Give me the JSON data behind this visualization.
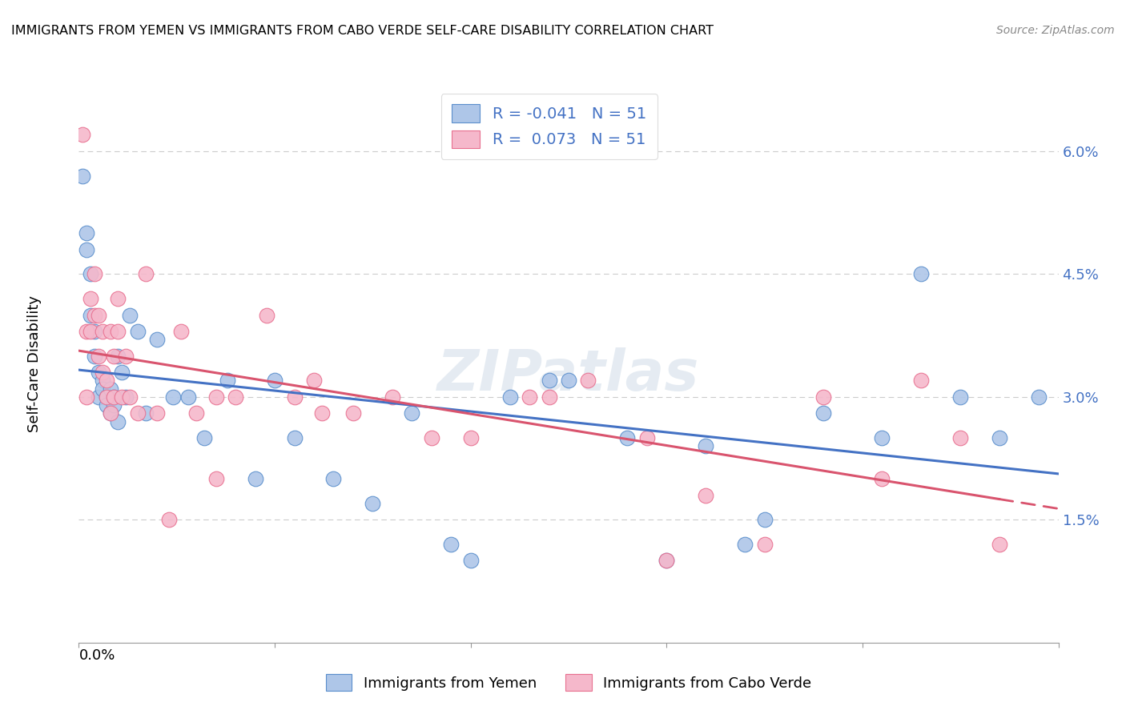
{
  "title": "IMMIGRANTS FROM YEMEN VS IMMIGRANTS FROM CABO VERDE SELF-CARE DISABILITY CORRELATION CHART",
  "source": "Source: ZipAtlas.com",
  "ylabel": "Self-Care Disability",
  "yticks": [
    "1.5%",
    "3.0%",
    "4.5%",
    "6.0%"
  ],
  "ytick_vals": [
    0.015,
    0.03,
    0.045,
    0.06
  ],
  "xrange": [
    0.0,
    0.25
  ],
  "yrange": [
    0.0,
    0.068
  ],
  "legend_r_blue": "-0.041",
  "legend_n_blue": "51",
  "legend_r_pink": "0.073",
  "legend_n_pink": "51",
  "legend_label_blue": "Immigrants from Yemen",
  "legend_label_pink": "Immigrants from Cabo Verde",
  "blue_fill": "#aec6e8",
  "pink_fill": "#f5b8cb",
  "blue_edge": "#5b8fcc",
  "pink_edge": "#e87090",
  "blue_line_color": "#4472c4",
  "pink_line_color": "#d9546e",
  "blue_x": [
    0.001,
    0.002,
    0.002,
    0.003,
    0.003,
    0.004,
    0.004,
    0.005,
    0.005,
    0.006,
    0.006,
    0.007,
    0.007,
    0.008,
    0.008,
    0.009,
    0.009,
    0.01,
    0.01,
    0.011,
    0.012,
    0.013,
    0.015,
    0.017,
    0.02,
    0.024,
    0.028,
    0.032,
    0.038,
    0.045,
    0.05,
    0.055,
    0.065,
    0.075,
    0.085,
    0.095,
    0.11,
    0.125,
    0.14,
    0.16,
    0.175,
    0.19,
    0.205,
    0.215,
    0.225,
    0.235,
    0.245,
    0.1,
    0.12,
    0.15,
    0.17
  ],
  "blue_y": [
    0.057,
    0.05,
    0.048,
    0.045,
    0.04,
    0.038,
    0.035,
    0.033,
    0.03,
    0.032,
    0.031,
    0.03,
    0.029,
    0.031,
    0.028,
    0.03,
    0.029,
    0.027,
    0.035,
    0.033,
    0.03,
    0.04,
    0.038,
    0.028,
    0.037,
    0.03,
    0.03,
    0.025,
    0.032,
    0.02,
    0.032,
    0.025,
    0.02,
    0.017,
    0.028,
    0.012,
    0.03,
    0.032,
    0.025,
    0.024,
    0.015,
    0.028,
    0.025,
    0.045,
    0.03,
    0.025,
    0.03,
    0.01,
    0.032,
    0.01,
    0.012
  ],
  "pink_x": [
    0.001,
    0.002,
    0.002,
    0.003,
    0.003,
    0.004,
    0.004,
    0.005,
    0.005,
    0.006,
    0.006,
    0.007,
    0.007,
    0.008,
    0.008,
    0.009,
    0.009,
    0.01,
    0.011,
    0.012,
    0.013,
    0.015,
    0.017,
    0.02,
    0.023,
    0.026,
    0.03,
    0.035,
    0.04,
    0.048,
    0.055,
    0.062,
    0.07,
    0.08,
    0.09,
    0.1,
    0.115,
    0.13,
    0.145,
    0.16,
    0.175,
    0.19,
    0.205,
    0.215,
    0.225,
    0.235,
    0.01,
    0.035,
    0.06,
    0.12,
    0.15
  ],
  "pink_y": [
    0.062,
    0.03,
    0.038,
    0.042,
    0.038,
    0.045,
    0.04,
    0.04,
    0.035,
    0.038,
    0.033,
    0.03,
    0.032,
    0.028,
    0.038,
    0.03,
    0.035,
    0.042,
    0.03,
    0.035,
    0.03,
    0.028,
    0.045,
    0.028,
    0.015,
    0.038,
    0.028,
    0.03,
    0.03,
    0.04,
    0.03,
    0.028,
    0.028,
    0.03,
    0.025,
    0.025,
    0.03,
    0.032,
    0.025,
    0.018,
    0.012,
    0.03,
    0.02,
    0.032,
    0.025,
    0.012,
    0.038,
    0.02,
    0.032,
    0.03,
    0.01
  ],
  "blue_trendline": [
    0.032,
    0.03
  ],
  "pink_trendline_solid": [
    0.028,
    0.034
  ],
  "pink_trendline_x_dash_start": 0.14,
  "watermark": "ZIPatlas",
  "grid_color": "#cccccc",
  "axis_color": "#999999"
}
